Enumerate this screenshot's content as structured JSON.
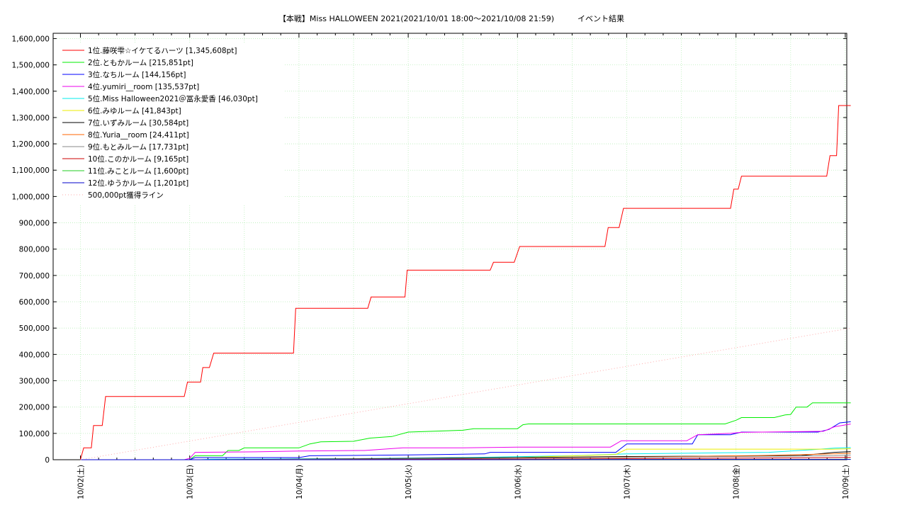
{
  "chart_data": {
    "type": "line",
    "title": "【本戦】Miss HALLOWEEN 2021(2021/10/01 18:00～2021/10/08 21:59)　　　イベント結果",
    "xlabel": "",
    "ylabel": "",
    "ylim": [
      0,
      1620000
    ],
    "grid": true,
    "legend_position": "top-left",
    "x_ticks": [
      "10/02(土)",
      "10/03(日)",
      "10/04(月)",
      "10/05(火)",
      "10/06(水)",
      "10/07(木)",
      "10/08(金)",
      "10/09(土)"
    ],
    "y_ticks": [
      0,
      100000,
      200000,
      300000,
      400000,
      500000,
      600000,
      700000,
      800000,
      900000,
      1000000,
      1100000,
      1200000,
      1300000,
      1400000,
      1500000,
      1600000
    ],
    "y_tick_labels": [
      "0",
      "100,000",
      "200,000",
      "300,000",
      "400,000",
      "500,000",
      "600,000",
      "700,000",
      "800,000",
      "900,000",
      "1,000,000",
      "1,100,000",
      "1,200,000",
      "1,300,000",
      "1,400,000",
      "1,500,000",
      "1,600,000"
    ],
    "series": [
      {
        "name": "1位.藤咲雫☆イケてるハーツ [1,345,608pt]",
        "color": "#ff0000",
        "points": [
          [
            0.0,
            0
          ],
          [
            0.03,
            45000
          ],
          [
            0.1,
            45000
          ],
          [
            0.12,
            130000
          ],
          [
            0.2,
            130000
          ],
          [
            0.23,
            240000
          ],
          [
            0.95,
            240000
          ],
          [
            0.98,
            295000
          ],
          [
            1.1,
            295000
          ],
          [
            1.12,
            350000
          ],
          [
            1.18,
            350000
          ],
          [
            1.22,
            405000
          ],
          [
            1.95,
            405000
          ],
          [
            1.97,
            575000
          ],
          [
            2.63,
            575000
          ],
          [
            2.66,
            618000
          ],
          [
            2.97,
            618000
          ],
          [
            2.99,
            720000
          ],
          [
            3.75,
            720000
          ],
          [
            3.78,
            750000
          ],
          [
            3.97,
            750000
          ],
          [
            4.02,
            810000
          ],
          [
            4.8,
            810000
          ],
          [
            4.83,
            882000
          ],
          [
            4.93,
            882000
          ],
          [
            4.97,
            955000
          ],
          [
            5.95,
            955000
          ],
          [
            5.98,
            1028000
          ],
          [
            6.02,
            1028000
          ],
          [
            6.05,
            1077000
          ],
          [
            6.83,
            1077000
          ],
          [
            6.86,
            1155000
          ],
          [
            6.92,
            1155000
          ],
          [
            6.94,
            1345608
          ],
          [
            7.05,
            1345608
          ]
        ]
      },
      {
        "name": "2位.ともかルーム [215,851pt]",
        "color": "#00ee00",
        "points": [
          [
            0.0,
            0
          ],
          [
            1.0,
            0
          ],
          [
            1.05,
            15000
          ],
          [
            1.3,
            15000
          ],
          [
            1.35,
            35000
          ],
          [
            1.45,
            35000
          ],
          [
            1.5,
            45000
          ],
          [
            2.0,
            45000
          ],
          [
            2.1,
            60000
          ],
          [
            2.2,
            68000
          ],
          [
            2.5,
            70000
          ],
          [
            2.65,
            82000
          ],
          [
            2.85,
            88000
          ],
          [
            3.0,
            105000
          ],
          [
            3.5,
            112000
          ],
          [
            3.6,
            118000
          ],
          [
            4.0,
            118000
          ],
          [
            4.05,
            133000
          ],
          [
            4.1,
            136000
          ],
          [
            5.3,
            136000
          ],
          [
            5.5,
            136000
          ],
          [
            5.9,
            136000
          ],
          [
            6.0,
            150000
          ],
          [
            6.05,
            160000
          ],
          [
            6.35,
            160000
          ],
          [
            6.45,
            170000
          ],
          [
            6.5,
            172000
          ],
          [
            6.55,
            200000
          ],
          [
            6.65,
            200000
          ],
          [
            6.7,
            216000
          ],
          [
            7.05,
            215851
          ]
        ]
      },
      {
        "name": "3位.なちルーム [144,156pt]",
        "color": "#0000ff",
        "points": [
          [
            0.0,
            0
          ],
          [
            1.0,
            0
          ],
          [
            1.05,
            8000
          ],
          [
            2.0,
            8000
          ],
          [
            2.1,
            15000
          ],
          [
            3.0,
            18000
          ],
          [
            3.7,
            22000
          ],
          [
            3.75,
            28000
          ],
          [
            4.9,
            28000
          ],
          [
            5.0,
            60000
          ],
          [
            5.6,
            60000
          ],
          [
            5.65,
            95000
          ],
          [
            5.95,
            95000
          ],
          [
            6.05,
            105000
          ],
          [
            6.75,
            105000
          ],
          [
            6.85,
            115000
          ],
          [
            6.95,
            140000
          ],
          [
            7.05,
            144156
          ]
        ]
      },
      {
        "name": "4位.yumiri__room [135,537pt]",
        "color": "#ee00ee",
        "points": [
          [
            0.0,
            0
          ],
          [
            0.95,
            0
          ],
          [
            1.0,
            5000
          ],
          [
            1.05,
            28000
          ],
          [
            1.6,
            30000
          ],
          [
            2.0,
            33000
          ],
          [
            2.6,
            35000
          ],
          [
            2.95,
            45000
          ],
          [
            3.5,
            45000
          ],
          [
            4.0,
            48000
          ],
          [
            4.85,
            48000
          ],
          [
            4.95,
            72000
          ],
          [
            5.55,
            72000
          ],
          [
            5.65,
            95000
          ],
          [
            5.95,
            100000
          ],
          [
            6.05,
            104000
          ],
          [
            6.8,
            108000
          ],
          [
            6.9,
            125000
          ],
          [
            7.05,
            135537
          ]
        ]
      },
      {
        "name": "5位.Miss Halloween2021＠冨永愛香 [46,030pt]",
        "color": "#00eeee",
        "points": [
          [
            0.0,
            0
          ],
          [
            1.1,
            0
          ],
          [
            1.2,
            2000
          ],
          [
            2.5,
            4000
          ],
          [
            3.5,
            8000
          ],
          [
            4.5,
            15000
          ],
          [
            5.0,
            22000
          ],
          [
            5.6,
            25000
          ],
          [
            6.3,
            28000
          ],
          [
            6.7,
            38000
          ],
          [
            6.9,
            44000
          ],
          [
            7.05,
            46030
          ]
        ]
      },
      {
        "name": "6位.みゆルーム [41,843pt]",
        "color": "#eeee00",
        "points": [
          [
            0.0,
            0
          ],
          [
            1.2,
            0
          ],
          [
            2.0,
            1000
          ],
          [
            3.0,
            3000
          ],
          [
            4.0,
            8000
          ],
          [
            4.9,
            20000
          ],
          [
            5.0,
            40000
          ],
          [
            6.9,
            40000
          ],
          [
            7.05,
            41843
          ]
        ]
      },
      {
        "name": "7位.いずみルーム [30,584pt]",
        "color": "#000000",
        "points": [
          [
            0.0,
            0
          ],
          [
            1.2,
            0
          ],
          [
            2.0,
            2000
          ],
          [
            3.0,
            5000
          ],
          [
            4.0,
            8000
          ],
          [
            5.0,
            12000
          ],
          [
            6.0,
            14000
          ],
          [
            6.6,
            16000
          ],
          [
            6.9,
            28000
          ],
          [
            7.05,
            30584
          ]
        ]
      },
      {
        "name": "8位.Yuria__room [24,411pt]",
        "color": "#ff6600",
        "points": [
          [
            0.0,
            0
          ],
          [
            1.5,
            0
          ],
          [
            2.5,
            2000
          ],
          [
            3.5,
            4000
          ],
          [
            4.5,
            8000
          ],
          [
            5.5,
            12000
          ],
          [
            6.2,
            16000
          ],
          [
            6.9,
            22000
          ],
          [
            7.05,
            24411
          ]
        ]
      },
      {
        "name": "9位.もとみルーム [17,731pt]",
        "color": "#888888",
        "points": [
          [
            0.0,
            0
          ],
          [
            1.2,
            0
          ],
          [
            2.0,
            1000
          ],
          [
            3.0,
            3000
          ],
          [
            4.0,
            6000
          ],
          [
            5.0,
            9000
          ],
          [
            6.0,
            12000
          ],
          [
            6.9,
            15000
          ],
          [
            7.05,
            17731
          ]
        ]
      },
      {
        "name": "10位.このかルーム [9,165pt]",
        "color": "#cc0000",
        "points": [
          [
            0.0,
            0
          ],
          [
            2.0,
            0
          ],
          [
            3.0,
            1000
          ],
          [
            4.0,
            2500
          ],
          [
            5.0,
            4000
          ],
          [
            6.0,
            6000
          ],
          [
            6.9,
            8000
          ],
          [
            7.05,
            9165
          ]
        ]
      },
      {
        "name": "11位.みことルーム [1,600pt]",
        "color": "#22cc22",
        "points": [
          [
            0.0,
            0
          ],
          [
            3.0,
            0
          ],
          [
            4.5,
            500
          ],
          [
            6.0,
            1200
          ],
          [
            7.05,
            1600
          ]
        ]
      },
      {
        "name": "12位.ゆうかルーム [1,201pt]",
        "color": "#0000cc",
        "points": [
          [
            0.0,
            0
          ],
          [
            3.5,
            0
          ],
          [
            5.0,
            600
          ],
          [
            6.5,
            1000
          ],
          [
            7.05,
            1201
          ]
        ]
      },
      {
        "name": "500,000pt獲得ライン",
        "color": "#ffaaaa",
        "dashed": true,
        "points": [
          [
            0.0,
            0
          ],
          [
            7.05,
            500000
          ]
        ]
      }
    ]
  }
}
